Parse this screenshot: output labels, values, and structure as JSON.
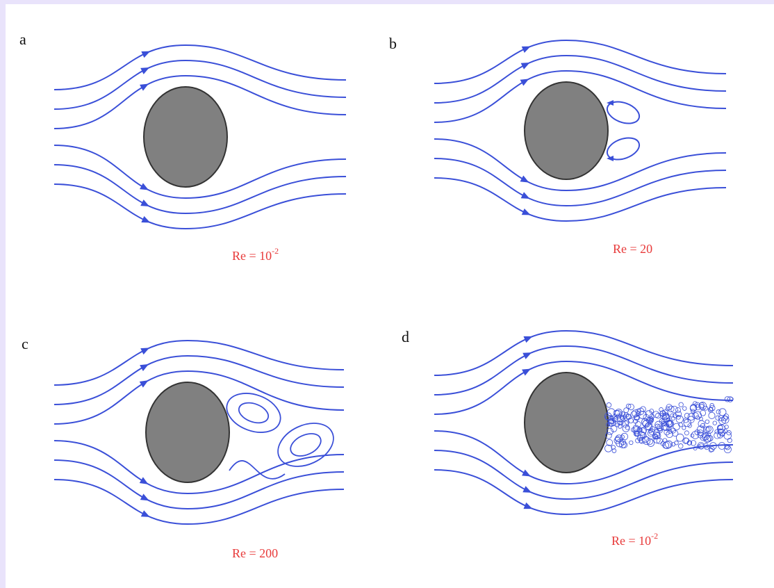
{
  "panels": [
    {
      "label": "a",
      "re": {
        "text": "Re = 10",
        "exponent": "-2"
      }
    },
    {
      "label": "b",
      "re": {
        "text": "Re = 20"
      }
    },
    {
      "label": "c",
      "re": {
        "text": "Re = 200"
      }
    },
    {
      "label": "d",
      "re": {
        "text": "Re = 10",
        "exponent": "-2"
      }
    }
  ]
}
